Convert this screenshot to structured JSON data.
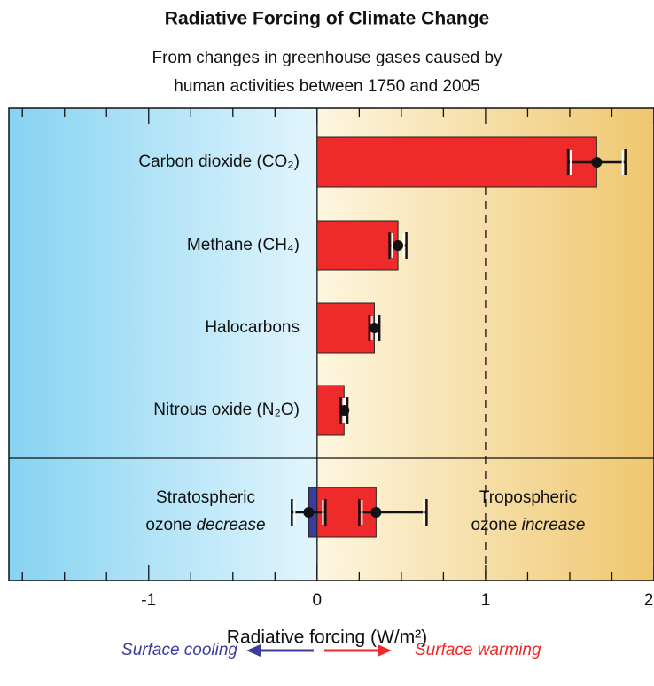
{
  "chart_data": {
    "type": "hbar_error",
    "title": "Radiative Forcing of Climate Change",
    "subtitle": [
      "From changes in greenhouse gases caused by",
      "human activities between 1750 and 2005"
    ],
    "categories": [
      "Carbon dioxide (CO₂)",
      "Methane (CH₄)",
      "Halocarbons",
      "Nitrous oxide (N₂O)",
      null,
      null
    ],
    "values": [
      1.66,
      0.48,
      0.34,
      0.16,
      -0.05,
      0.35
    ],
    "error_minus": [
      0.17,
      0.05,
      0.03,
      0.02,
      0.1,
      0.1
    ],
    "error_plus": [
      0.17,
      0.05,
      0.03,
      0.02,
      0.1,
      0.3
    ],
    "colors": [
      "#ee2a2a",
      "#ee2a2a",
      "#ee2a2a",
      "#ee2a2a",
      "#3c3c9c",
      "#ee2a2a"
    ],
    "ozone_labels": [
      {
        "line1": "Stratospheric",
        "line2": "ozone",
        "emphasis": "decrease"
      },
      {
        "line1": "Tropospheric",
        "line2": "ozone",
        "emphasis": "increase"
      }
    ],
    "xlim": [
      -1.83,
      2
    ],
    "xticks": [
      -1,
      0,
      1,
      2
    ],
    "xminor_ticks": [
      -1.75,
      -1.5,
      -1.25,
      -0.75,
      -0.5,
      -0.25,
      0.25,
      0.5,
      0.75,
      1.25,
      1.5,
      1.75
    ],
    "reference_line": 1,
    "xlabel": "Radiative forcing  (W/m²)",
    "cooling_label": "Surface cooling",
    "warming_label": "Surface warming"
  }
}
